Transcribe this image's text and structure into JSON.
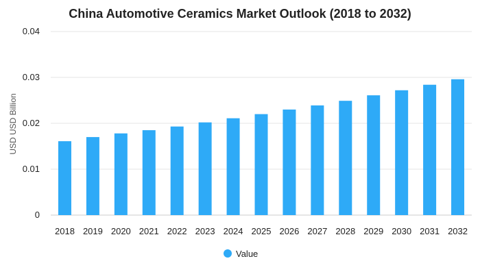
{
  "chart_data": {
    "type": "bar",
    "title": "China Automotive Ceramics Market Outlook (2018 to 2032)",
    "xlabel": "",
    "ylabel": "USD USD Billion",
    "categories": [
      "2018",
      "2019",
      "2020",
      "2021",
      "2022",
      "2023",
      "2024",
      "2025",
      "2026",
      "2027",
      "2028",
      "2029",
      "2030",
      "2031",
      "2032"
    ],
    "series": [
      {
        "name": "Value",
        "color": "#2EAAF7",
        "values": [
          0.0161,
          0.017,
          0.0178,
          0.0185,
          0.0193,
          0.0202,
          0.0211,
          0.022,
          0.023,
          0.0239,
          0.0249,
          0.0261,
          0.0272,
          0.0284,
          0.0296
        ]
      }
    ],
    "ylim": [
      0,
      0.04
    ],
    "yticks": [
      "0",
      "0.01",
      "0.02",
      "0.03",
      "0.04"
    ],
    "grid": true,
    "legend_position": "bottom-center"
  }
}
